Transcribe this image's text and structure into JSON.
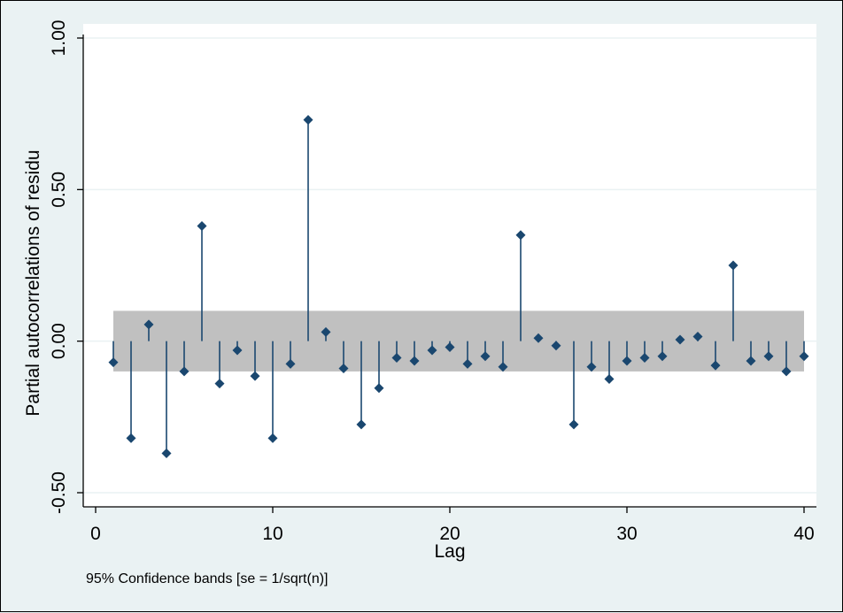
{
  "chart_data": {
    "type": "stem",
    "xlabel": "Lag",
    "ylabel": "Partial autocorrelations of residu",
    "note": "95% Confidence bands [se = 1/sqrt(n)]",
    "xlim": [
      0,
      40
    ],
    "ylim": [
      -0.5,
      1.0
    ],
    "xticks": [
      "0",
      "10",
      "20",
      "30",
      "40"
    ],
    "yticks": [
      "-0.50",
      "0.00",
      "0.50",
      "1.00"
    ],
    "confidence_band": [
      -0.1,
      0.1
    ],
    "lags": [
      1,
      2,
      3,
      4,
      5,
      6,
      7,
      8,
      9,
      10,
      11,
      12,
      13,
      14,
      15,
      16,
      17,
      18,
      19,
      20,
      21,
      22,
      23,
      24,
      25,
      26,
      27,
      28,
      29,
      30,
      31,
      32,
      33,
      34,
      35,
      36,
      37,
      38,
      39,
      40
    ],
    "values": [
      -0.07,
      -0.32,
      0.055,
      -0.37,
      -0.1,
      0.38,
      -0.14,
      -0.03,
      -0.115,
      -0.32,
      -0.075,
      0.73,
      0.03,
      -0.09,
      -0.275,
      -0.155,
      -0.055,
      -0.065,
      -0.03,
      -0.02,
      -0.075,
      -0.05,
      -0.085,
      0.35,
      0.01,
      -0.015,
      -0.275,
      -0.085,
      -0.125,
      -0.065,
      -0.055,
      -0.05,
      0.005,
      0.015,
      -0.08,
      0.25,
      -0.065,
      -0.05,
      -0.1,
      -0.05
    ],
    "grid": true,
    "colors": {
      "plot_bg": "#ffffff",
      "page_bg": "#eaf2f3",
      "band": "#c0c0c0",
      "marker": "#1a476f",
      "grid": "#eaf2f3"
    }
  }
}
